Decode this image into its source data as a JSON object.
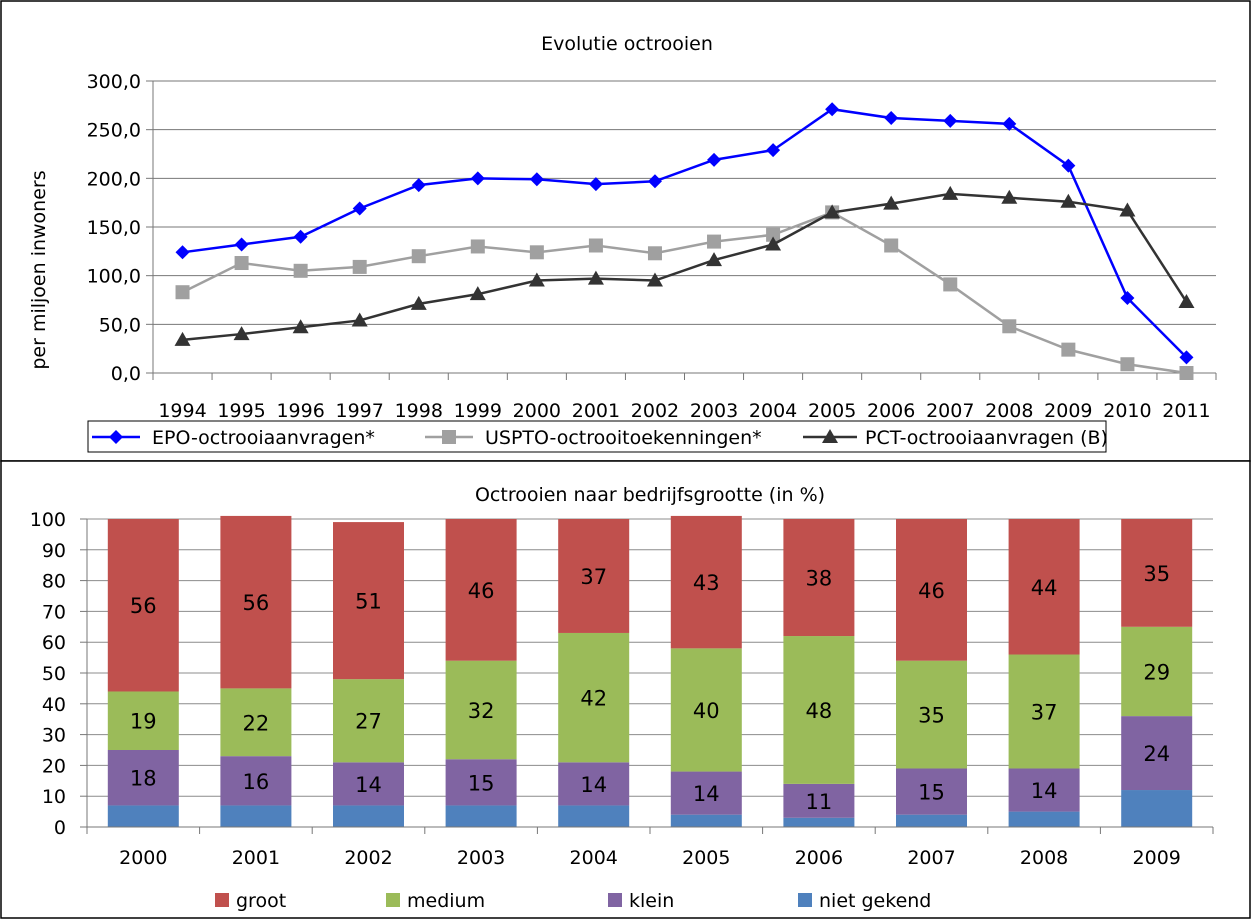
{
  "chart_data": [
    {
      "type": "line",
      "title": "Evolutie octrooien",
      "ylabel": "per miljoen inwoners",
      "xlabel": "",
      "ylim": [
        0,
        300
      ],
      "y_ticks": [
        "0,0",
        "50,0",
        "100,0",
        "150,0",
        "200,0",
        "250,0",
        "300,0"
      ],
      "grid": true,
      "legend_position": "bottom",
      "x": [
        "1994",
        "1995",
        "1996",
        "1997",
        "1998",
        "1999",
        "2000",
        "2001",
        "2002",
        "2003",
        "2004",
        "2005",
        "2006",
        "2007",
        "2008",
        "2009",
        "2010",
        "2011"
      ],
      "series": [
        {
          "name": "EPO-octrooiaanvragen*",
          "color": "#0000ff",
          "marker": "diamond",
          "values": [
            124,
            132,
            140,
            169,
            193,
            200,
            199,
            194,
            197,
            219,
            229,
            271,
            262,
            259,
            256,
            213,
            77,
            16
          ]
        },
        {
          "name": "USPTO-octrooitoekenningen*",
          "color": "#a0a0a0",
          "marker": "square",
          "values": [
            83,
            113,
            105,
            109,
            120,
            130,
            124,
            131,
            123,
            135,
            142,
            165,
            131,
            91,
            48,
            24,
            9,
            0
          ]
        },
        {
          "name": "PCT-octrooiaanvragen (B)",
          "color": "#333333",
          "marker": "triangle",
          "values": [
            34,
            40,
            47,
            54,
            71,
            81,
            95,
            97,
            95,
            116,
            132,
            165,
            174,
            184,
            180,
            176,
            167,
            73
          ]
        }
      ]
    },
    {
      "type": "bar",
      "stacked": true,
      "title": "Octrooien naar bedrijfsgrootte (in %)",
      "xlabel": "",
      "ylabel": "",
      "ylim": [
        0,
        100
      ],
      "y_ticks": [
        "0",
        "10",
        "20",
        "30",
        "40",
        "50",
        "60",
        "70",
        "80",
        "90",
        "100"
      ],
      "grid": true,
      "legend_position": "bottom",
      "categories": [
        "2000",
        "2001",
        "2002",
        "2003",
        "2004",
        "2005",
        "2006",
        "2007",
        "2008",
        "2009"
      ],
      "series": [
        {
          "name": "niet gekend",
          "color": "#4f81bd",
          "values": [
            7,
            7,
            7,
            7,
            7,
            4,
            3,
            4,
            5,
            12
          ],
          "show_labels": false
        },
        {
          "name": "klein",
          "color": "#8064a2",
          "values": [
            18,
            16,
            14,
            15,
            14,
            14,
            11,
            15,
            14,
            24
          ],
          "show_labels": true
        },
        {
          "name": "medium",
          "color": "#9bbb59",
          "values": [
            19,
            22,
            27,
            32,
            42,
            40,
            48,
            35,
            37,
            29
          ],
          "show_labels": true
        },
        {
          "name": "groot",
          "color": "#c0504d",
          "values": [
            56,
            56,
            51,
            46,
            37,
            43,
            38,
            46,
            44,
            35
          ],
          "show_labels": true
        }
      ],
      "legend_order": [
        "groot",
        "medium",
        "klein",
        "niet gekend"
      ]
    }
  ]
}
